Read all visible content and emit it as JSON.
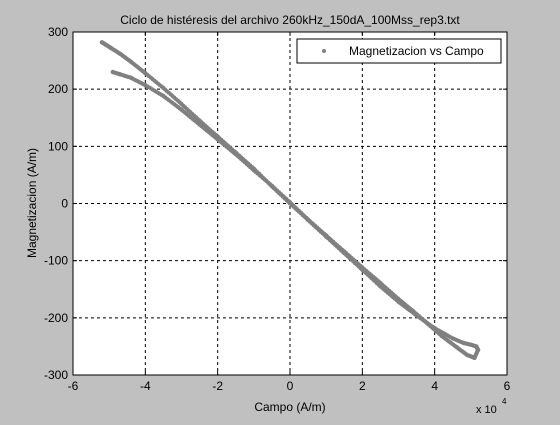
{
  "chart_data": {
    "type": "scatter",
    "title": "Ciclo de histéresis del archivo 260kHz_150dA_100Mss_rep3.txt",
    "xlabel": "Campo (A/m)",
    "ylabel": "Magnetizacion (A/m)",
    "x_exponent_label": "x 10",
    "x_exponent_power": "4",
    "xlim": [
      -60000,
      60000
    ],
    "ylim": [
      -300,
      300
    ],
    "grid": true,
    "legend_position": "top-right",
    "x_ticks": [
      -60000,
      -40000,
      -20000,
      0,
      20000,
      40000,
      60000
    ],
    "x_tick_labels": [
      "-6",
      "-4",
      "-2",
      "0",
      "2",
      "4",
      "6"
    ],
    "y_ticks": [
      -300,
      -200,
      -100,
      0,
      100,
      200,
      300
    ],
    "y_tick_labels": [
      "-300",
      "-200",
      "-100",
      "0",
      "100",
      "200",
      "300"
    ],
    "series": [
      {
        "name": "Magnetizacion vs Campo",
        "color": "#808080",
        "marker": "dot",
        "x": [
          -52000,
          -51000,
          -49500,
          -47000,
          -44000,
          -40000,
          -35000,
          -30000,
          -25000,
          -20000,
          -15000,
          -10000,
          -5000,
          0,
          5000,
          10000,
          15000,
          20000,
          25000,
          30000,
          35000,
          40000,
          45000,
          48000,
          50000,
          51500,
          52000,
          51000,
          49000,
          46000,
          42000,
          38000,
          34000,
          30000,
          25000,
          20000,
          15000,
          10000,
          5000,
          0,
          -5000,
          -10000,
          -15000,
          -20000,
          -25000,
          -30000,
          -35000,
          -40000,
          -44000,
          -47000,
          -49000
        ],
        "y": [
          282,
          278,
          272,
          262,
          248,
          228,
          202,
          174,
          145,
          117,
          89,
          61,
          30,
          0,
          -29,
          -58,
          -87,
          -116,
          -145,
          -172,
          -196,
          -218,
          -236,
          -244,
          -247,
          -250,
          -256,
          -270,
          -265,
          -251,
          -232,
          -210,
          -188,
          -167,
          -139,
          -112,
          -84,
          -56,
          -28,
          2,
          31,
          58,
          86,
          112,
          138,
          164,
          188,
          207,
          220,
          226,
          230
        ]
      }
    ]
  }
}
